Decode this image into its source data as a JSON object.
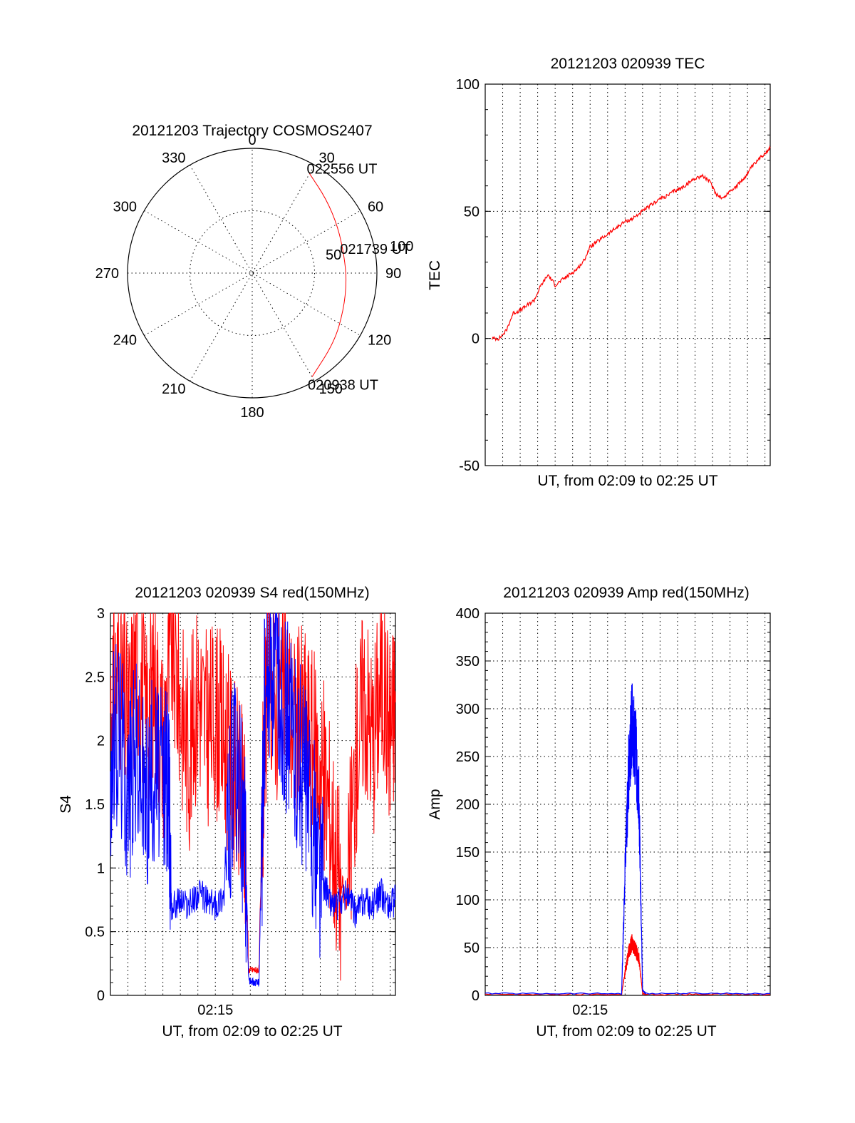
{
  "colors": {
    "red": "#ff0000",
    "blue": "#0000ff",
    "axis": "#000000"
  },
  "chart_data": [
    {
      "id": "trajectory",
      "type": "polar",
      "title": "20121203 Trajectory COSMOS2407",
      "azimuth_labels": [
        "0",
        "30",
        "60",
        "90",
        "120",
        "150",
        "180",
        "210",
        "240",
        "270",
        "300",
        "330"
      ],
      "radial_labels": [
        "50",
        "100"
      ],
      "rlim": [
        0,
        100
      ],
      "grid": true,
      "series": [
        {
          "color": "red",
          "points": [
            {
              "az": 150,
              "r": 96,
              "label": "020938 UT"
            },
            {
              "az": 130,
              "r": 86
            },
            {
              "az": 112,
              "r": 79
            },
            {
              "az": 95,
              "r": 76
            },
            {
              "az": 80,
              "r": 75,
              "label": "021739 UT"
            },
            {
              "az": 62,
              "r": 78
            },
            {
              "az": 45,
              "r": 84
            },
            {
              "az": 30,
              "r": 92,
              "label": "022556 UT"
            }
          ]
        }
      ]
    },
    {
      "id": "tec",
      "type": "line",
      "title": "20121203 020939 TEC",
      "xlabel": "UT, from 02:09 to 02:25 UT",
      "ylabel": "TEC",
      "xlim": [
        0,
        16.3
      ],
      "ylim": [
        -50,
        100
      ],
      "yticks": [
        "-50",
        "0",
        "50",
        "100"
      ],
      "grid": true,
      "series": [
        {
          "color": "red",
          "x": [
            0.4,
            0.8,
            1.2,
            1.6,
            2.0,
            2.4,
            2.8,
            3.2,
            3.6,
            4.0,
            4.4,
            4.8,
            5.2,
            5.6,
            6.0,
            6.4,
            6.8,
            7.2,
            7.6,
            8.0,
            8.4,
            8.8,
            9.2,
            9.6,
            10.0,
            10.4,
            10.8,
            11.2,
            11.6,
            12.0,
            12.4,
            12.8,
            13.2,
            13.6,
            14.0,
            14.4,
            14.8,
            15.2,
            15.6,
            16.0,
            16.3
          ],
          "values": [
            0,
            0,
            3,
            10,
            11,
            13,
            15,
            21,
            25,
            21,
            23,
            25,
            27,
            30,
            36,
            38,
            40,
            42,
            44,
            46,
            47,
            49,
            51,
            53,
            55,
            56,
            58,
            59,
            61,
            63,
            64,
            62,
            57,
            55,
            58,
            60,
            63,
            67,
            70,
            73,
            75
          ]
        }
      ]
    },
    {
      "id": "s4",
      "type": "line",
      "title": "20121203 020939 S4 red(150MHz)",
      "xlabel": "UT, from 02:09 to 02:25 UT",
      "ylabel": "S4",
      "xlim": [
        0,
        16.3
      ],
      "ylim": [
        0,
        3
      ],
      "yticks": [
        "0",
        "0.5",
        "1",
        "1.5",
        "2",
        "2.5",
        "3"
      ],
      "xtick_labels": [
        {
          "at": 6,
          "label": "02:15"
        }
      ],
      "grid": true,
      "series": [
        {
          "color": "red",
          "x": [
            0.0,
            0.5,
            1.0,
            1.5,
            2.0,
            2.5,
            3.0,
            3.5,
            4.0,
            4.5,
            5.0,
            5.5,
            6.0,
            6.5,
            7.0,
            7.5,
            7.7,
            7.9,
            8.2,
            8.5,
            8.8,
            9.0,
            9.5,
            10.0,
            10.5,
            11.0,
            11.5,
            12.0,
            12.5,
            13.0,
            13.5,
            14.0,
            14.5,
            15.0,
            15.5,
            16.0,
            16.3
          ],
          "values": [
            2.3,
            2.6,
            2.1,
            2.7,
            2.2,
            2.5,
            2.0,
            2.8,
            2.3,
            1.9,
            2.4,
            2.1,
            2.2,
            2.0,
            1.8,
            1.5,
            1.3,
            0.2,
            0.2,
            0.2,
            2.0,
            2.6,
            2.3,
            2.5,
            2.1,
            2.2,
            2.0,
            1.8,
            1.5,
            1.0,
            0.7,
            1.8,
            2.4,
            2.0,
            2.5,
            2.1,
            2.3
          ]
        },
        {
          "color": "blue",
          "x": [
            0.0,
            0.5,
            1.0,
            1.5,
            2.0,
            2.5,
            3.0,
            3.3,
            3.5,
            4.0,
            4.5,
            5.0,
            5.5,
            6.0,
            6.5,
            7.0,
            7.5,
            7.7,
            7.9,
            8.2,
            8.5,
            8.8,
            9.2,
            9.6,
            10.0,
            10.5,
            11.0,
            11.5,
            12.0,
            12.5,
            13.0,
            13.5,
            14.0,
            14.5,
            15.0,
            15.5,
            16.0,
            16.3
          ],
          "values": [
            1.8,
            2.1,
            1.6,
            1.9,
            1.5,
            1.8,
            1.6,
            1.7,
            0.7,
            0.75,
            0.7,
            0.8,
            0.75,
            0.7,
            0.8,
            1.7,
            1.5,
            1.2,
            0.12,
            0.1,
            0.1,
            2.2,
            2.6,
            2.4,
            2.2,
            2.0,
            1.8,
            1.4,
            1.0,
            0.75,
            0.7,
            0.8,
            0.65,
            0.75,
            0.7,
            0.8,
            0.7,
            0.75
          ]
        }
      ]
    },
    {
      "id": "amp",
      "type": "line",
      "title": "20121203 020939 Amp red(150MHz)",
      "xlabel": "UT, from 02:09 to 02:25 UT",
      "ylabel": "Amp",
      "xlim": [
        0,
        16.3
      ],
      "ylim": [
        0,
        400
      ],
      "yticks": [
        "0",
        "50",
        "100",
        "150",
        "200",
        "250",
        "300",
        "350",
        "400"
      ],
      "xtick_labels": [
        {
          "at": 6,
          "label": "02:15"
        }
      ],
      "grid": true,
      "series": [
        {
          "color": "red",
          "x": [
            0.0,
            7.8,
            8.0,
            8.2,
            8.4,
            8.6,
            8.8,
            9.0,
            9.2,
            16.3
          ],
          "values": [
            1,
            1,
            25,
            45,
            55,
            48,
            38,
            2,
            1,
            1
          ]
        },
        {
          "color": "blue",
          "x": [
            0.0,
            7.8,
            8.0,
            8.2,
            8.4,
            8.6,
            8.8,
            9.0,
            9.2,
            16.3
          ],
          "values": [
            2,
            2,
            130,
            230,
            285,
            260,
            200,
            5,
            2,
            2
          ]
        }
      ]
    }
  ]
}
